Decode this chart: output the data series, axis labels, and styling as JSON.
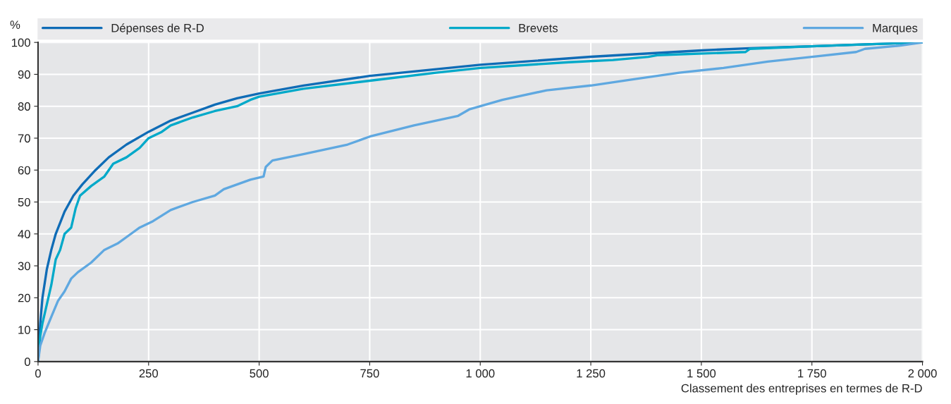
{
  "chart_data": {
    "type": "line",
    "xlabel": "Classement des entreprises en termes de R-D",
    "ylabel": "%",
    "xlim": [
      0,
      2000
    ],
    "xticks": [
      0,
      250,
      500,
      750,
      {
        "value": 1000,
        "label": "1 000"
      },
      {
        "value": 1250,
        "label": "1 250"
      },
      {
        "value": 1500,
        "label": "1 500"
      },
      {
        "value": 1750,
        "label": "1 750"
      },
      {
        "value": 2000,
        "label": "2 000"
      }
    ],
    "ylim": [
      0,
      100
    ],
    "yticks": [
      0,
      10,
      20,
      30,
      40,
      50,
      60,
      70,
      80,
      90,
      100
    ],
    "grid": true,
    "legend": "top",
    "line_style": "solid",
    "series": [
      {
        "name": "Dépenses de R-D",
        "color": "#0f6cb6",
        "x": [
          0,
          2,
          5,
          10,
          20,
          30,
          40,
          60,
          80,
          100,
          130,
          160,
          200,
          250,
          300,
          350,
          400,
          450,
          500,
          600,
          750,
          1000,
          1250,
          1500,
          1610,
          1750,
          2000
        ],
        "values": [
          0,
          5,
          12,
          20,
          29,
          35,
          40,
          47,
          52,
          55.5,
          60,
          64,
          68,
          72,
          75.5,
          78,
          80.5,
          82.5,
          84,
          86.5,
          89.5,
          93,
          95.5,
          97.5,
          98.2,
          98.8,
          100
        ]
      },
      {
        "name": "Brevets",
        "color": "#00a9c9",
        "x": [
          0,
          5,
          10,
          20,
          30,
          40,
          50,
          60,
          75,
          85,
          95,
          120,
          150,
          170,
          200,
          230,
          250,
          280,
          300,
          350,
          400,
          450,
          480,
          500,
          600,
          750,
          900,
          1000,
          1200,
          1300,
          1380,
          1400,
          1600,
          1610,
          1750,
          2000
        ],
        "values": [
          0,
          8,
          12,
          18,
          24,
          32,
          35,
          40,
          42,
          48,
          52,
          55,
          58,
          62,
          64,
          67,
          70,
          72,
          74,
          76.5,
          78.5,
          80,
          82,
          83,
          85.5,
          88,
          90.5,
          92,
          93.8,
          94.5,
          95.5,
          96,
          97,
          98,
          98.8,
          100
        ]
      },
      {
        "name": "Marques",
        "color": "#5fa8e0",
        "x": [
          0,
          5,
          15,
          30,
          45,
          60,
          75,
          90,
          120,
          150,
          180,
          210,
          230,
          260,
          300,
          350,
          400,
          420,
          480,
          510,
          515,
          530,
          600,
          700,
          750,
          850,
          950,
          975,
          1000,
          1050,
          1150,
          1250,
          1350,
          1450,
          1550,
          1650,
          1750,
          1850,
          1870,
          1950,
          2000
        ],
        "values": [
          0,
          5,
          9,
          14,
          19,
          22,
          26,
          28,
          31,
          35,
          37,
          40,
          42,
          44,
          47.5,
          50,
          52,
          54,
          57,
          58,
          61,
          63,
          65,
          68,
          70.5,
          74,
          77,
          79,
          80,
          82,
          85,
          86.5,
          88.5,
          90.5,
          92,
          94,
          95.5,
          97,
          98,
          99,
          100
        ]
      }
    ]
  }
}
